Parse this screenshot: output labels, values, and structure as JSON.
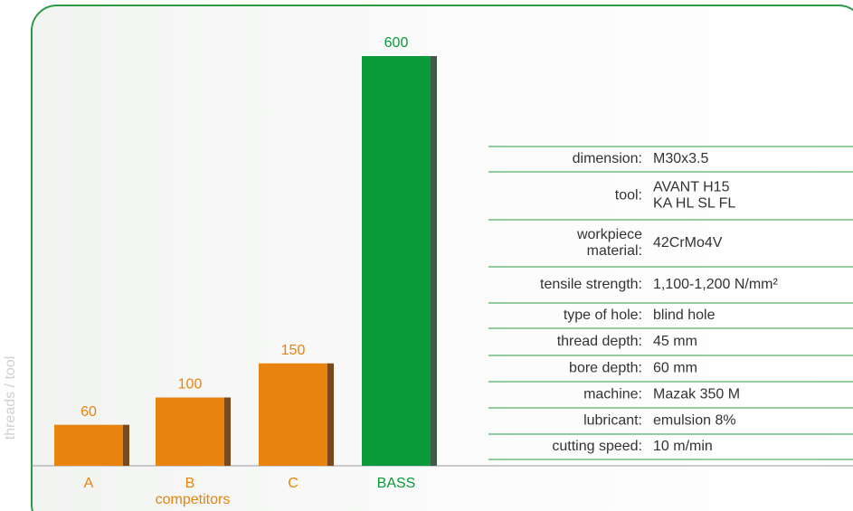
{
  "chart_data": {
    "type": "bar",
    "ylabel": "threads / tool",
    "categories": [
      "A",
      "B",
      "C",
      "BASS"
    ],
    "values": [
      60,
      100,
      150,
      600
    ],
    "colors": [
      "#e8830e",
      "#e8830e",
      "#e8830e",
      "#0a9a3a"
    ],
    "shade_colors": [
      "#7a4a1e",
      "#7a4a1e",
      "#7a4a1e",
      "#44584a"
    ],
    "group_label": "competitors",
    "ylim": [
      0,
      600
    ]
  },
  "table": {
    "rows": [
      {
        "label": [
          "dimension:"
        ],
        "value": [
          "M30x3.5"
        ]
      },
      {
        "label": [
          "tool:"
        ],
        "value": [
          "AVANT H15",
          "KA HL SL FL"
        ]
      },
      {
        "label": [
          "workpiece",
          "material:"
        ],
        "value": [
          "42CrMo4V"
        ]
      },
      {
        "label": [
          "tensile strength:"
        ],
        "value": [
          "1,100-1,200 N/mm²"
        ]
      },
      {
        "label": [
          "type of hole:"
        ],
        "value": [
          "blind hole"
        ]
      },
      {
        "label": [
          "thread depth:"
        ],
        "value": [
          "45 mm"
        ]
      },
      {
        "label": [
          "bore depth:"
        ],
        "value": [
          "60 mm"
        ]
      },
      {
        "label": [
          "machine:"
        ],
        "value": [
          "Mazak 350 M"
        ]
      },
      {
        "label": [
          "lubricant:"
        ],
        "value": [
          "emulsion 8%"
        ]
      },
      {
        "label": [
          "cutting speed:"
        ],
        "value": [
          "10 m/min"
        ]
      }
    ]
  }
}
